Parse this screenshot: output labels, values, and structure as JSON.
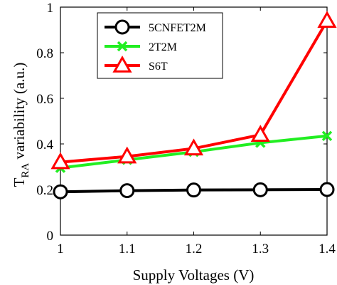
{
  "chart_data": {
    "type": "line",
    "x": [
      1,
      1.1,
      1.2,
      1.3,
      1.4
    ],
    "xlim": [
      1,
      1.4
    ],
    "ylim": [
      0,
      1
    ],
    "xticks": [
      "1",
      "1.1",
      "1.2",
      "1.3",
      "1.4"
    ],
    "yticks": [
      "0",
      "0.2",
      "0.4",
      "0.6",
      "0.8",
      "1"
    ],
    "xtick_values": [
      1,
      1.1,
      1.2,
      1.3,
      1.4
    ],
    "ytick_values": [
      0,
      0.2,
      0.4,
      0.6,
      0.8,
      1
    ],
    "xlabel": "Supply Voltages (V)",
    "ylabel_main": "T",
    "ylabel_sub": "RA",
    "ylabel_rest": " variability (a.u.)",
    "grid": false,
    "legend_position": "top-left",
    "series": [
      {
        "name": "5CNFET2M",
        "values": [
          0.19,
          0.195,
          0.198,
          0.199,
          0.2
        ],
        "color": "#000000",
        "marker": "circle"
      },
      {
        "name": "2T2M",
        "values": [
          0.295,
          0.33,
          0.365,
          0.405,
          0.435
        ],
        "color": "#22ee22",
        "marker": "x"
      },
      {
        "name": "S6T",
        "values": [
          0.32,
          0.345,
          0.38,
          0.44,
          0.94
        ],
        "color": "#ff0000",
        "marker": "triangle"
      }
    ]
  }
}
